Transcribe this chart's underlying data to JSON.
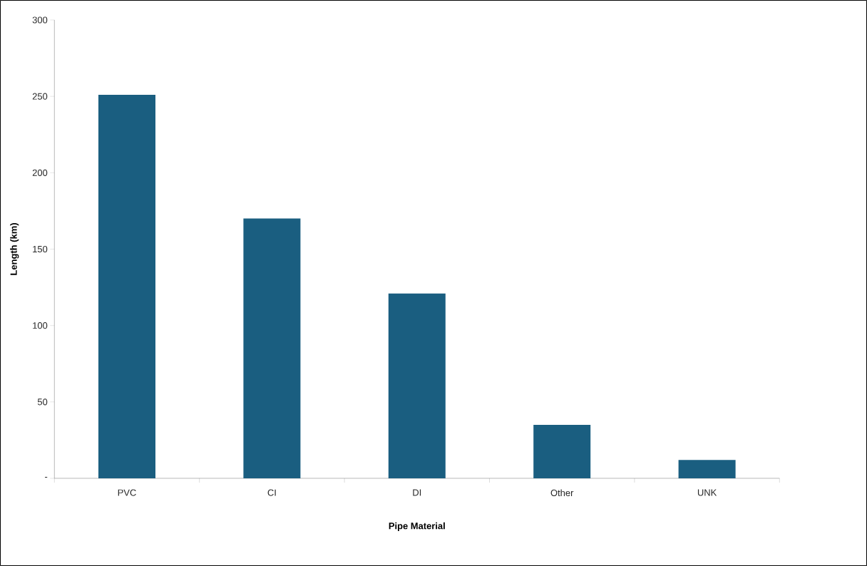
{
  "chart_data": {
    "type": "bar",
    "xlabel": "Pipe Material",
    "ylabel": "Length (km)",
    "categories": [
      "PVC",
      "CI",
      "DI",
      "Other",
      "UNK"
    ],
    "values": [
      251,
      170,
      121,
      35,
      12
    ],
    "color": "#1a5e80",
    "ylim": [
      0,
      300
    ],
    "yticks": [
      {
        "value": 0,
        "label": "-"
      },
      50,
      100,
      150,
      200,
      250,
      300
    ]
  }
}
